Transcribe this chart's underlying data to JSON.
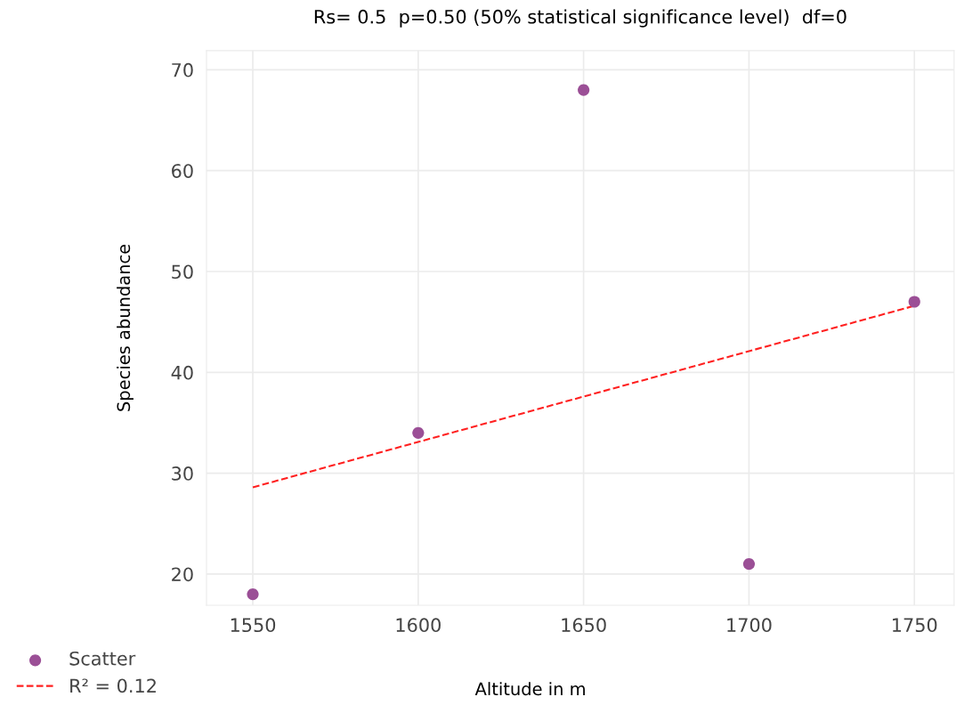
{
  "chart_data": {
    "type": "scatter",
    "title": "Rs= 0.5  p=0.50 (50% statistical significance level)  df=0",
    "xlabel": "Altitude in m",
    "ylabel": "Species abundance",
    "x": [
      1550,
      1600,
      1650,
      1700,
      1750
    ],
    "series": [
      {
        "name": "Scatter",
        "color": "#9b4f96",
        "values": [
          18,
          34,
          68,
          21,
          47
        ],
        "marker": "circle"
      },
      {
        "name": "R² = 0.12",
        "type": "line",
        "color": "#ff2020",
        "x": [
          1550,
          1750
        ],
        "values": [
          28.6,
          46.6
        ],
        "line_style": "dashed",
        "marker": "none"
      }
    ],
    "xlim": [
      1536,
      1762
    ],
    "ylim": [
      16.9,
      71.9
    ],
    "xticks": [
      1550,
      1600,
      1650,
      1700,
      1750
    ],
    "yticks": [
      20,
      30,
      40,
      50,
      60,
      70
    ],
    "grid": true,
    "legend": "bottom left"
  }
}
